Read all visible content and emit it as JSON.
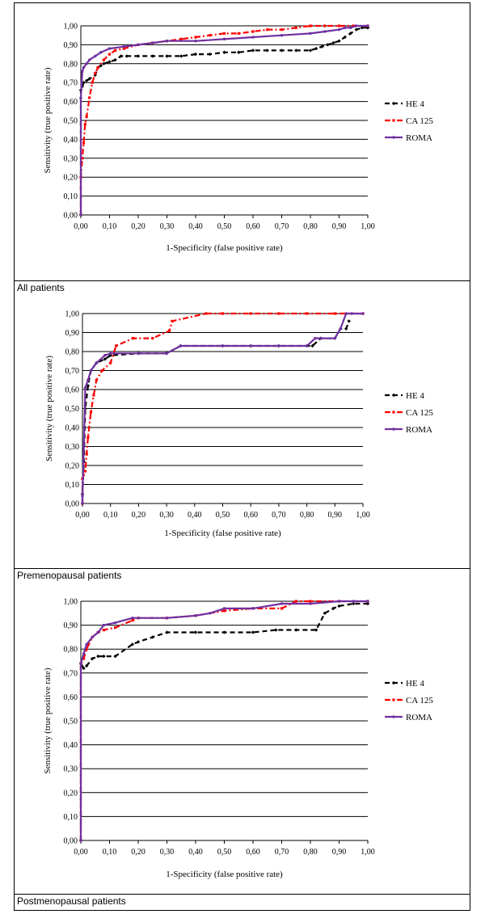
{
  "chart_data": [
    {
      "type": "line",
      "caption": "All patients",
      "xlabel": "1-Specificity (false positive rate)",
      "ylabel": "Sensitivity (true positive rate)",
      "xlim": [
        0,
        1
      ],
      "ylim": [
        0,
        1
      ],
      "xticks": [
        "0,00",
        "0,10",
        "0,20",
        "0,30",
        "0,40",
        "0,50",
        "0,60",
        "0,70",
        "0,80",
        "0,90",
        "1,00"
      ],
      "yticks": [
        "0,00",
        "0,10",
        "0,20",
        "0,30",
        "0,40",
        "0,50",
        "0,60",
        "0,70",
        "0,80",
        "0,90",
        "1,00"
      ],
      "grid": "horizontal",
      "legend_position": "right",
      "series": [
        {
          "name": "HE 4",
          "color": "#000000",
          "dash": "dash",
          "marker": "diamond",
          "x": [
            0,
            0,
            0.005,
            0.01,
            0.02,
            0.03,
            0.05,
            0.06,
            0.07,
            0.08,
            0.1,
            0.12,
            0.14,
            0.16,
            0.2,
            0.25,
            0.3,
            0.35,
            0.4,
            0.45,
            0.5,
            0.55,
            0.6,
            0.65,
            0.7,
            0.75,
            0.8,
            0.82,
            0.84,
            0.86,
            0.88,
            0.9,
            0.92,
            0.94,
            0.96,
            0.98,
            1.0
          ],
          "y": [
            0,
            0.66,
            0.68,
            0.7,
            0.71,
            0.72,
            0.74,
            0.78,
            0.79,
            0.8,
            0.81,
            0.82,
            0.84,
            0.84,
            0.84,
            0.84,
            0.84,
            0.84,
            0.85,
            0.85,
            0.86,
            0.86,
            0.87,
            0.87,
            0.87,
            0.87,
            0.87,
            0.88,
            0.89,
            0.9,
            0.91,
            0.92,
            0.94,
            0.96,
            0.98,
            0.99,
            0.99
          ]
        },
        {
          "name": "CA 125",
          "color": "#ff0000",
          "dash": "dashdot",
          "marker": "square",
          "x": [
            0,
            0,
            0.005,
            0.01,
            0.015,
            0.02,
            0.03,
            0.04,
            0.05,
            0.06,
            0.08,
            0.1,
            0.12,
            0.15,
            0.2,
            0.25,
            0.3,
            0.35,
            0.4,
            0.45,
            0.5,
            0.55,
            0.6,
            0.65,
            0.7,
            0.75,
            0.8,
            0.85,
            0.9,
            0.95,
            1.0
          ],
          "y": [
            0,
            0.2,
            0.3,
            0.38,
            0.48,
            0.52,
            0.62,
            0.7,
            0.75,
            0.78,
            0.82,
            0.85,
            0.87,
            0.88,
            0.9,
            0.91,
            0.92,
            0.93,
            0.94,
            0.95,
            0.96,
            0.96,
            0.97,
            0.98,
            0.98,
            0.99,
            1.0,
            1.0,
            1.0,
            1.0,
            1.0
          ]
        },
        {
          "name": "ROMA",
          "color": "#7030a0",
          "dash": "solid",
          "marker": "circle",
          "x": [
            0,
            0,
            0.003,
            0.005,
            0.01,
            0.02,
            0.03,
            0.05,
            0.07,
            0.1,
            0.15,
            0.2,
            0.25,
            0.3,
            0.4,
            0.5,
            0.6,
            0.7,
            0.8,
            0.85,
            0.9,
            0.92,
            0.94,
            0.96,
            1.0
          ],
          "y": [
            0,
            0.62,
            0.7,
            0.76,
            0.78,
            0.8,
            0.82,
            0.84,
            0.86,
            0.88,
            0.89,
            0.9,
            0.91,
            0.92,
            0.92,
            0.93,
            0.94,
            0.95,
            0.96,
            0.97,
            0.98,
            0.99,
            0.99,
            1.0,
            1.0
          ]
        }
      ]
    },
    {
      "type": "line",
      "caption": "Premenopausal patients",
      "xlabel": "1-Specificity (false positive rate)",
      "ylabel": "Sensitivity (true positive rate)",
      "xlim": [
        0,
        1
      ],
      "ylim": [
        0,
        1
      ],
      "xticks": [
        "0,00",
        "0,10",
        "0,20",
        "0,30",
        "0,40",
        "0,50",
        "0,60",
        "0,70",
        "0,80",
        "0,90",
        "1,00"
      ],
      "yticks": [
        "0,00",
        "0,10",
        "0,20",
        "0,30",
        "0,40",
        "0,50",
        "0,60",
        "0,70",
        "0,80",
        "0,90",
        "1,00"
      ],
      "grid": "horizontal",
      "legend_position": "right",
      "series": [
        {
          "name": "HE 4",
          "color": "#000000",
          "dash": "dash",
          "marker": "diamond",
          "x": [
            0,
            0,
            0.005,
            0.01,
            0.02,
            0.03,
            0.05,
            0.08,
            0.1,
            0.2,
            0.3,
            0.35,
            0.5,
            0.6,
            0.7,
            0.8,
            0.82,
            0.85,
            0.9,
            0.92,
            0.94,
            0.95
          ],
          "y": [
            0,
            0.05,
            0.22,
            0.5,
            0.62,
            0.7,
            0.74,
            0.76,
            0.78,
            0.79,
            0.79,
            0.83,
            0.83,
            0.83,
            0.83,
            0.83,
            0.83,
            0.87,
            0.87,
            0.92,
            0.92,
            0.96
          ]
        },
        {
          "name": "CA 125",
          "color": "#ff0000",
          "dash": "dashdot",
          "marker": "square",
          "x": [
            0,
            0,
            0.01,
            0.015,
            0.02,
            0.03,
            0.04,
            0.05,
            0.07,
            0.1,
            0.12,
            0.18,
            0.25,
            0.31,
            0.32,
            0.44,
            0.5,
            0.6,
            0.7,
            0.8,
            0.9,
            1.0
          ],
          "y": [
            0,
            0.13,
            0.17,
            0.26,
            0.35,
            0.48,
            0.57,
            0.65,
            0.7,
            0.74,
            0.83,
            0.87,
            0.87,
            0.91,
            0.96,
            1.0,
            1.0,
            1.0,
            1.0,
            1.0,
            1.0,
            1.0
          ]
        },
        {
          "name": "ROMA",
          "color": "#7030a0",
          "dash": "solid",
          "marker": "circle",
          "x": [
            0,
            0,
            0.005,
            0.01,
            0.02,
            0.03,
            0.05,
            0.08,
            0.1,
            0.2,
            0.3,
            0.35,
            0.5,
            0.6,
            0.7,
            0.8,
            0.83,
            0.85,
            0.9,
            0.92,
            0.94,
            0.96,
            1.0
          ],
          "y": [
            0,
            0.04,
            0.3,
            0.61,
            0.65,
            0.7,
            0.74,
            0.78,
            0.79,
            0.79,
            0.79,
            0.83,
            0.83,
            0.83,
            0.83,
            0.83,
            0.87,
            0.87,
            0.87,
            0.92,
            1.0,
            1.0,
            1.0
          ]
        }
      ]
    },
    {
      "type": "line",
      "caption": "Postmenopausal patients",
      "xlabel": "1-Specificity (false positive rate)",
      "ylabel": "Sensitivity (true positive rate)",
      "xlim": [
        0,
        1
      ],
      "ylim": [
        0,
        1
      ],
      "xticks": [
        "0,00",
        "0,10",
        "0,20",
        "0,30",
        "0,40",
        "0,50",
        "0,60",
        "0,70",
        "0,80",
        "0,90",
        "1,00"
      ],
      "yticks": [
        "0,00",
        "0,10",
        "0,20",
        "0,30",
        "0,40",
        "0,50",
        "0,60",
        "0,70",
        "0,80",
        "0,90",
        "1,00"
      ],
      "grid": "horizontal",
      "legend_position": "right",
      "series": [
        {
          "name": "HE 4",
          "color": "#000000",
          "dash": "dash",
          "marker": "diamond",
          "x": [
            0,
            0,
            0.01,
            0.02,
            0.04,
            0.06,
            0.08,
            0.12,
            0.18,
            0.2,
            0.25,
            0.3,
            0.4,
            0.5,
            0.6,
            0.68,
            0.75,
            0.82,
            0.85,
            0.88,
            0.9,
            0.95,
            1.0
          ],
          "y": [
            0,
            0.74,
            0.72,
            0.73,
            0.76,
            0.77,
            0.77,
            0.77,
            0.82,
            0.83,
            0.85,
            0.87,
            0.87,
            0.87,
            0.87,
            0.88,
            0.88,
            0.88,
            0.95,
            0.97,
            0.98,
            0.99,
            0.99
          ]
        },
        {
          "name": "CA 125",
          "color": "#ff0000",
          "dash": "dashdot",
          "marker": "square",
          "x": [
            0,
            0,
            0.01,
            0.02,
            0.04,
            0.06,
            0.08,
            0.12,
            0.18,
            0.2,
            0.3,
            0.4,
            0.5,
            0.6,
            0.7,
            0.75,
            0.8,
            0.9,
            1.0
          ],
          "y": [
            0,
            0.74,
            0.76,
            0.8,
            0.85,
            0.87,
            0.88,
            0.89,
            0.92,
            0.93,
            0.93,
            0.94,
            0.96,
            0.97,
            0.97,
            1.0,
            1.0,
            1.0,
            1.0
          ]
        },
        {
          "name": "ROMA",
          "color": "#7030a0",
          "dash": "solid",
          "marker": "circle",
          "x": [
            0,
            0,
            0.01,
            0.02,
            0.04,
            0.06,
            0.08,
            0.12,
            0.18,
            0.2,
            0.3,
            0.4,
            0.45,
            0.5,
            0.6,
            0.7,
            0.8,
            0.9,
            0.95,
            1.0
          ],
          "y": [
            0,
            0.74,
            0.78,
            0.82,
            0.85,
            0.87,
            0.9,
            0.91,
            0.93,
            0.93,
            0.93,
            0.94,
            0.95,
            0.97,
            0.97,
            0.99,
            0.99,
            1.0,
            1.0,
            1.0
          ]
        }
      ]
    }
  ]
}
